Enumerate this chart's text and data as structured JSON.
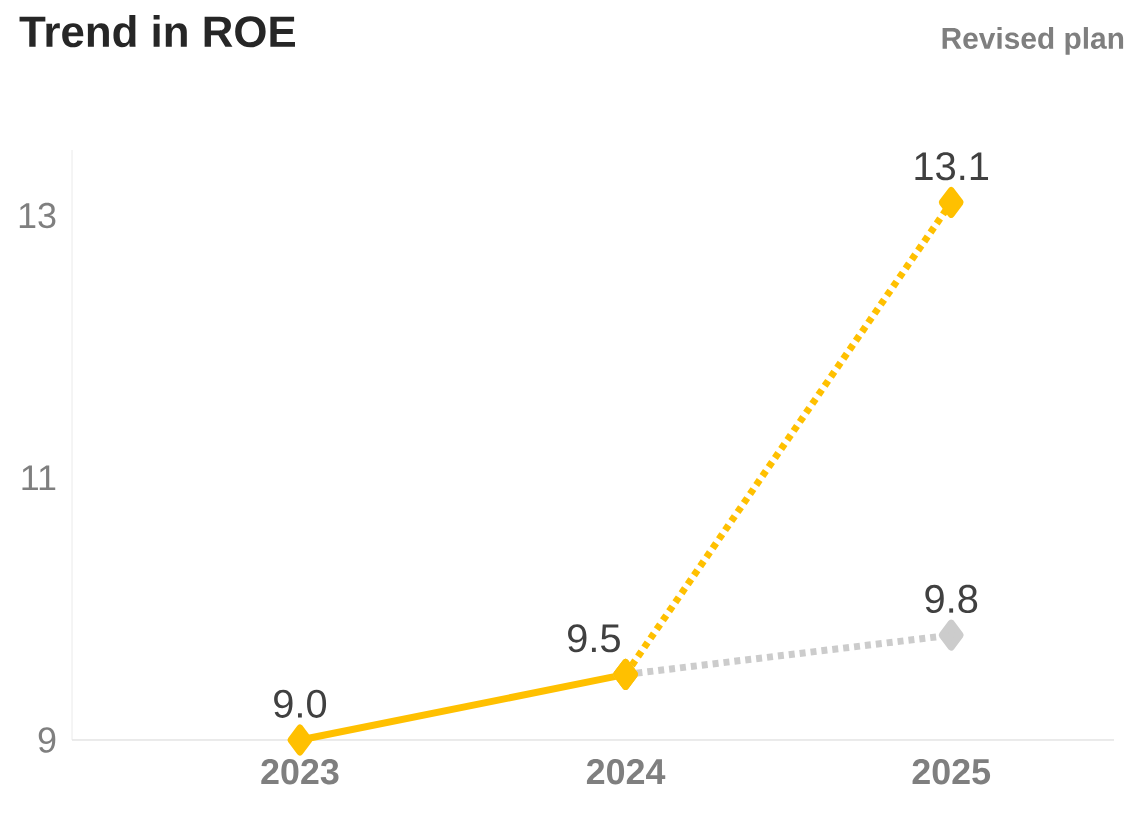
{
  "chart_data": {
    "type": "line",
    "title": "Trend in ROE",
    "annotations": [
      "Revised plan"
    ],
    "categories": [
      "2023",
      "2024",
      "2025"
    ],
    "ylim": [
      9,
      13.5
    ],
    "yticks": [
      9,
      11,
      13
    ],
    "marker": "diamond",
    "series": [
      {
        "color": "#cccccc",
        "line_style": "dotted",
        "values": [
          null,
          9.5,
          9.8
        ],
        "value_labels": [
          null,
          null,
          "9.8"
        ]
      },
      {
        "color": "#ffc000",
        "line_style": "dotted",
        "values": [
          null,
          9.5,
          13.1
        ],
        "value_labels": [
          null,
          "9.5",
          "13.1"
        ]
      },
      {
        "color": "#ffc000",
        "line_style": "solid",
        "values": [
          9.0,
          9.5,
          null
        ],
        "value_labels": [
          "9.0",
          null,
          null
        ]
      }
    ]
  }
}
